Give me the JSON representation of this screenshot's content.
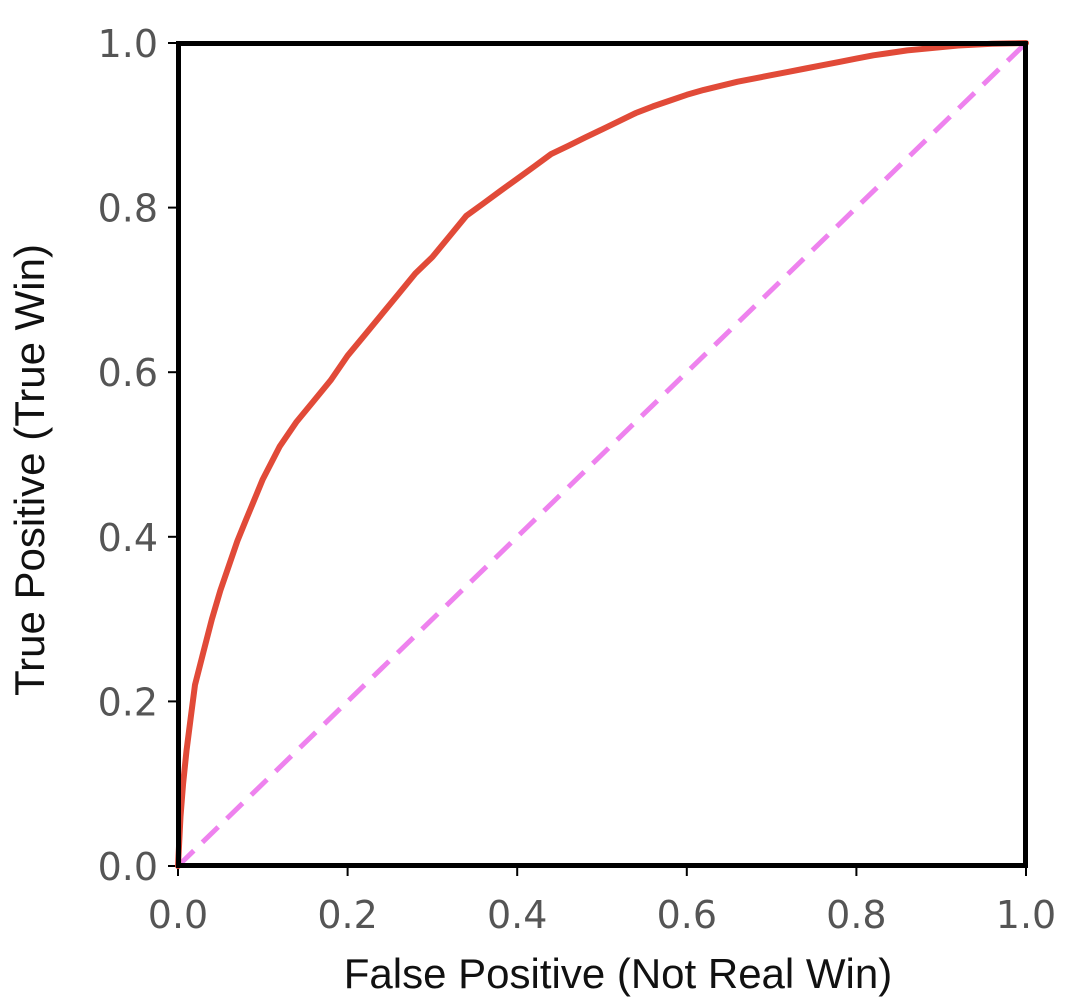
{
  "chart_data": {
    "type": "line",
    "title": "",
    "xlabel": "False Positive (Not Real Win)",
    "ylabel": "True Positive (True Win)",
    "xlim": [
      0.0,
      1.0
    ],
    "ylim": [
      0.0,
      1.0
    ],
    "grid": false,
    "legend": "none",
    "x_ticks": [
      "0.0",
      "0.2",
      "0.4",
      "0.6",
      "0.8",
      "1.0"
    ],
    "y_ticks": [
      "0.0",
      "0.2",
      "0.4",
      "0.6",
      "0.8",
      "1.0"
    ],
    "series": [
      {
        "color": "#e14a38",
        "style": "solid",
        "x": [
          0.0,
          0.003,
          0.006,
          0.01,
          0.015,
          0.02,
          0.03,
          0.04,
          0.05,
          0.06,
          0.07,
          0.08,
          0.1,
          0.12,
          0.14,
          0.16,
          0.18,
          0.2,
          0.22,
          0.24,
          0.26,
          0.28,
          0.3,
          0.32,
          0.34,
          0.36,
          0.38,
          0.4,
          0.42,
          0.44,
          0.46,
          0.48,
          0.5,
          0.52,
          0.54,
          0.56,
          0.58,
          0.6,
          0.62,
          0.64,
          0.66,
          0.68,
          0.7,
          0.72,
          0.74,
          0.76,
          0.78,
          0.8,
          0.82,
          0.84,
          0.86,
          0.88,
          0.9,
          0.92,
          0.94,
          0.96,
          0.98,
          1.0
        ],
        "y": [
          0.0,
          0.06,
          0.1,
          0.14,
          0.18,
          0.22,
          0.26,
          0.3,
          0.335,
          0.365,
          0.395,
          0.42,
          0.47,
          0.51,
          0.54,
          0.565,
          0.59,
          0.62,
          0.645,
          0.67,
          0.695,
          0.72,
          0.74,
          0.765,
          0.79,
          0.805,
          0.82,
          0.835,
          0.85,
          0.865,
          0.875,
          0.885,
          0.895,
          0.905,
          0.915,
          0.923,
          0.93,
          0.937,
          0.943,
          0.948,
          0.953,
          0.957,
          0.961,
          0.965,
          0.969,
          0.973,
          0.977,
          0.981,
          0.985,
          0.988,
          0.991,
          0.993,
          0.995,
          0.997,
          0.998,
          0.999,
          0.9995,
          1.0
        ]
      },
      {
        "color": "#ee82ee",
        "style": "dashed",
        "x": [
          0.0,
          1.0
        ],
        "y": [
          0.0,
          1.0
        ]
      }
    ]
  }
}
